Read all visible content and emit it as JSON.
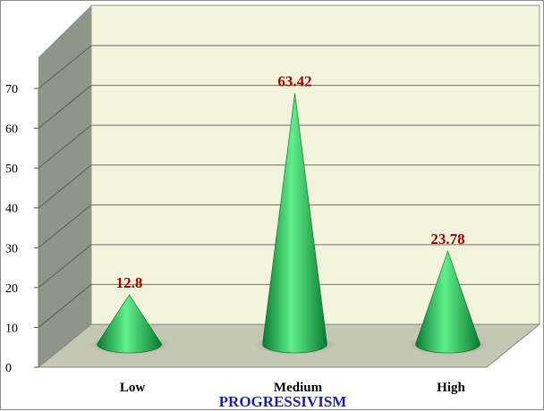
{
  "chart_data": {
    "type": "bar",
    "style": "3d-cone",
    "categories": [
      "Low",
      "Medium",
      "High"
    ],
    "values": [
      12.8,
      63.42,
      23.78
    ],
    "data_labels": [
      "12.8",
      "63.42",
      "23.78"
    ],
    "xlabel": "PROGRESSIVISM",
    "ylabel": "",
    "ylim": [
      0,
      70
    ],
    "yticks": [
      "0",
      "10",
      "20",
      "30",
      "40",
      "50",
      "60",
      "70"
    ],
    "grid": true,
    "legend": "none"
  },
  "colors": {
    "back_wall": "#f2f4dc",
    "side_wall": "#8f9588",
    "floor": "#c4c7b3",
    "gridline": "#6f6f6f",
    "cone_dark": "#0a7a2e",
    "cone_light": "#5ff08a",
    "value_label": "#b00000",
    "axis_title": "#1f1fcc"
  }
}
